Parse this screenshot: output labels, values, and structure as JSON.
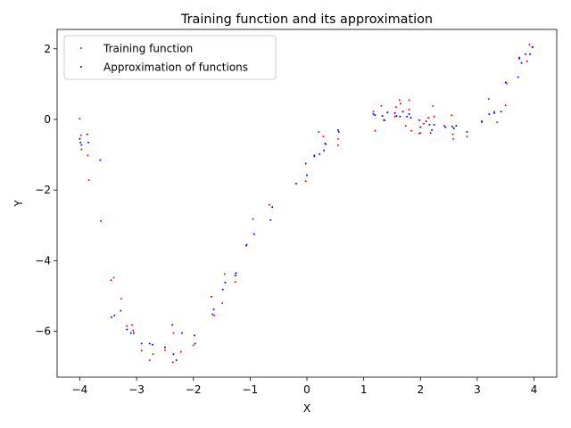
{
  "chart_data": {
    "type": "scatter",
    "title": "Training function and its approximation",
    "xlabel": "X",
    "ylabel": "Y",
    "xlim": [
      -4.4,
      4.4
    ],
    "ylim": [
      -7.3,
      2.55
    ],
    "xticks": [
      -4,
      -3,
      -2,
      -1,
      0,
      1,
      2,
      3,
      4
    ],
    "yticks": [
      -6,
      -4,
      -2,
      0,
      2
    ],
    "grid": false,
    "legend_position": "top-left",
    "series": [
      {
        "name": "Training function",
        "color": "#ff0000",
        "points": [
          [
            -4.0,
            0.02
          ],
          [
            -3.98,
            -0.45
          ],
          [
            -3.97,
            -0.85
          ],
          [
            -3.86,
            -1.02
          ],
          [
            -3.84,
            -1.72
          ],
          [
            -3.63,
            -2.88
          ],
          [
            -3.45,
            -4.55
          ],
          [
            -3.4,
            -4.48
          ],
          [
            -3.27,
            -5.08
          ],
          [
            -3.17,
            -5.85
          ],
          [
            -3.08,
            -5.82
          ],
          [
            -3.06,
            -5.98
          ],
          [
            -2.91,
            -6.55
          ],
          [
            -2.77,
            -6.82
          ],
          [
            -2.71,
            -6.65
          ],
          [
            -2.5,
            -6.53
          ],
          [
            -2.35,
            -6.05
          ],
          [
            -2.36,
            -6.88
          ],
          [
            -2.22,
            -6.58
          ],
          [
            -2.0,
            -6.4
          ],
          [
            -1.68,
            -5.02
          ],
          [
            -1.63,
            -5.55
          ],
          [
            -1.49,
            -5.2
          ],
          [
            -1.45,
            -4.38
          ],
          [
            -1.26,
            -4.6
          ],
          [
            -1.07,
            -3.58
          ],
          [
            -0.95,
            -2.82
          ],
          [
            -0.66,
            -2.42
          ],
          [
            -0.02,
            -1.75
          ],
          [
            0.13,
            -1.05
          ],
          [
            0.21,
            -0.35
          ],
          [
            0.29,
            -0.48
          ],
          [
            0.32,
            -0.68
          ],
          [
            0.55,
            -0.55
          ],
          [
            0.55,
            -0.73
          ],
          [
            1.17,
            0.22
          ],
          [
            1.2,
            -0.32
          ],
          [
            1.31,
            0.38
          ],
          [
            1.35,
            -0.02
          ],
          [
            1.55,
            0.08
          ],
          [
            1.57,
            0.35
          ],
          [
            1.63,
            0.55
          ],
          [
            1.65,
            0.45
          ],
          [
            1.74,
            -0.18
          ],
          [
            1.8,
            0.55
          ],
          [
            1.8,
            0.28
          ],
          [
            1.84,
            -0.32
          ],
          [
            1.98,
            -0.4
          ],
          [
            2.0,
            -0.38
          ],
          [
            2.06,
            -0.12
          ],
          [
            2.14,
            0.05
          ],
          [
            2.18,
            -0.38
          ],
          [
            2.22,
            0.38
          ],
          [
            2.24,
            0.08
          ],
          [
            2.42,
            -0.18
          ],
          [
            2.55,
            0.12
          ],
          [
            2.58,
            -0.55
          ],
          [
            2.57,
            -0.42
          ],
          [
            2.82,
            -0.48
          ],
          [
            3.08,
            -0.08
          ],
          [
            3.2,
            0.58
          ],
          [
            3.3,
            0.22
          ],
          [
            3.35,
            -0.08
          ],
          [
            3.5,
            0.4
          ],
          [
            3.52,
            1.02
          ],
          [
            3.74,
            1.72
          ],
          [
            3.88,
            1.65
          ],
          [
            3.92,
            2.12
          ],
          [
            3.98,
            2.05
          ]
        ]
      },
      {
        "name": "Approximation of functions",
        "color": "#0000ff",
        "points": [
          [
            -4.0,
            -0.55
          ],
          [
            -3.99,
            -0.65
          ],
          [
            -3.97,
            -0.72
          ],
          [
            -3.87,
            -0.42
          ],
          [
            -3.85,
            -0.65
          ],
          [
            -3.64,
            -1.15
          ],
          [
            -3.44,
            -5.6
          ],
          [
            -3.39,
            -5.55
          ],
          [
            -3.28,
            -5.42
          ],
          [
            -3.17,
            -5.95
          ],
          [
            -3.1,
            -6.05
          ],
          [
            -3.05,
            -6.05
          ],
          [
            -2.91,
            -6.35
          ],
          [
            -2.77,
            -6.35
          ],
          [
            -2.72,
            -6.38
          ],
          [
            -2.5,
            -6.45
          ],
          [
            -2.37,
            -5.82
          ],
          [
            -2.35,
            -6.65
          ],
          [
            -2.3,
            -6.82
          ],
          [
            -2.2,
            -6.05
          ],
          [
            -1.98,
            -6.12
          ],
          [
            -1.97,
            -6.35
          ],
          [
            -1.66,
            -5.52
          ],
          [
            -1.64,
            -5.38
          ],
          [
            -1.48,
            -4.82
          ],
          [
            -1.44,
            -4.62
          ],
          [
            -1.26,
            -4.42
          ],
          [
            -1.25,
            -4.35
          ],
          [
            -1.06,
            -3.55
          ],
          [
            -0.93,
            -3.25
          ],
          [
            -0.64,
            -2.85
          ],
          [
            -0.61,
            -2.48
          ],
          [
            -0.19,
            -1.82
          ],
          [
            -0.02,
            -1.25
          ],
          [
            0.0,
            -1.58
          ],
          [
            0.13,
            -1.02
          ],
          [
            0.22,
            -0.98
          ],
          [
            0.3,
            -0.88
          ],
          [
            0.33,
            -0.7
          ],
          [
            0.55,
            -0.3
          ],
          [
            0.56,
            -0.35
          ],
          [
            1.17,
            0.15
          ],
          [
            1.2,
            0.12
          ],
          [
            1.33,
            0.1
          ],
          [
            1.37,
            -0.02
          ],
          [
            1.42,
            0.2
          ],
          [
            1.55,
            0.18
          ],
          [
            1.58,
            0.1
          ],
          [
            1.64,
            0.08
          ],
          [
            1.69,
            0.22
          ],
          [
            1.76,
            0.08
          ],
          [
            1.8,
            0.15
          ],
          [
            1.83,
            0.05
          ],
          [
            1.98,
            -0.02
          ],
          [
            2.0,
            -0.22
          ],
          [
            2.1,
            -0.05
          ],
          [
            2.16,
            -0.15
          ],
          [
            2.2,
            -0.3
          ],
          [
            2.24,
            -0.15
          ],
          [
            2.44,
            -0.22
          ],
          [
            2.56,
            -0.2
          ],
          [
            2.59,
            -0.25
          ],
          [
            2.63,
            -0.18
          ],
          [
            2.82,
            -0.35
          ],
          [
            3.08,
            -0.05
          ],
          [
            3.21,
            0.15
          ],
          [
            3.3,
            0.18
          ],
          [
            3.42,
            0.22
          ],
          [
            3.5,
            1.05
          ],
          [
            3.72,
            1.2
          ],
          [
            3.74,
            1.75
          ],
          [
            3.78,
            1.6
          ],
          [
            3.85,
            1.85
          ],
          [
            3.93,
            1.85
          ],
          [
            3.97,
            2.05
          ]
        ]
      }
    ]
  }
}
